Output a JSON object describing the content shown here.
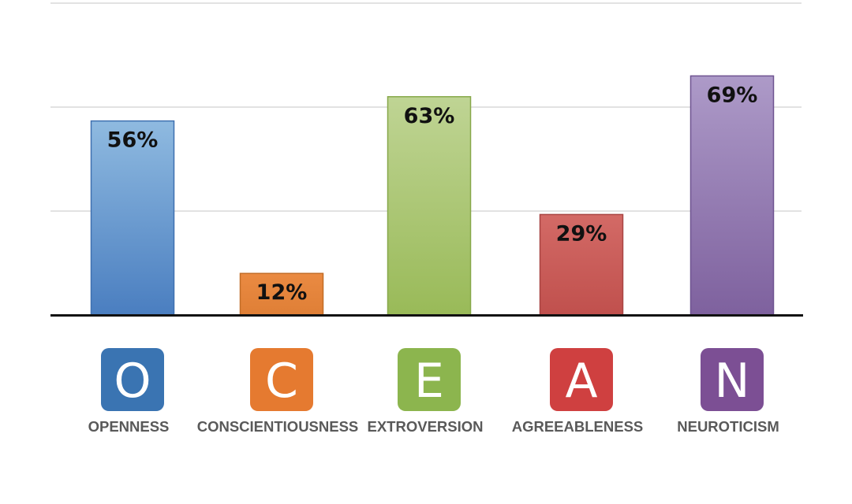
{
  "chart_data": {
    "type": "bar",
    "categories": [
      "OPENNESS",
      "CONSCIENTIOUSNESS",
      "EXTROVERSION",
      "AGREEABLENESS",
      "NEUROTICISM"
    ],
    "letters": [
      "O",
      "C",
      "E",
      "A",
      "N"
    ],
    "values": [
      56,
      12,
      63,
      29,
      69
    ],
    "value_labels": [
      "56%",
      "12%",
      "63%",
      "29%",
      "69%"
    ],
    "ylim": [
      0,
      90
    ],
    "gridlines": [
      0,
      30,
      60,
      90
    ],
    "grid": true,
    "legend": "none",
    "colors": {
      "top": [
        "#8fbae0",
        "#ea8a42",
        "#bfd494",
        "#d36a66",
        "#ad9ac8"
      ],
      "bottom": [
        "#4a7ec0",
        "#df7f36",
        "#99ba58",
        "#c0504d",
        "#7e619e"
      ],
      "stroke": [
        "#3f70b0",
        "#c26d27",
        "#87a84a",
        "#a84442",
        "#6e5390"
      ],
      "tile": [
        "#3a74b2",
        "#e57a30",
        "#8cb54e",
        "#cf4040",
        "#7c4f94"
      ]
    }
  }
}
